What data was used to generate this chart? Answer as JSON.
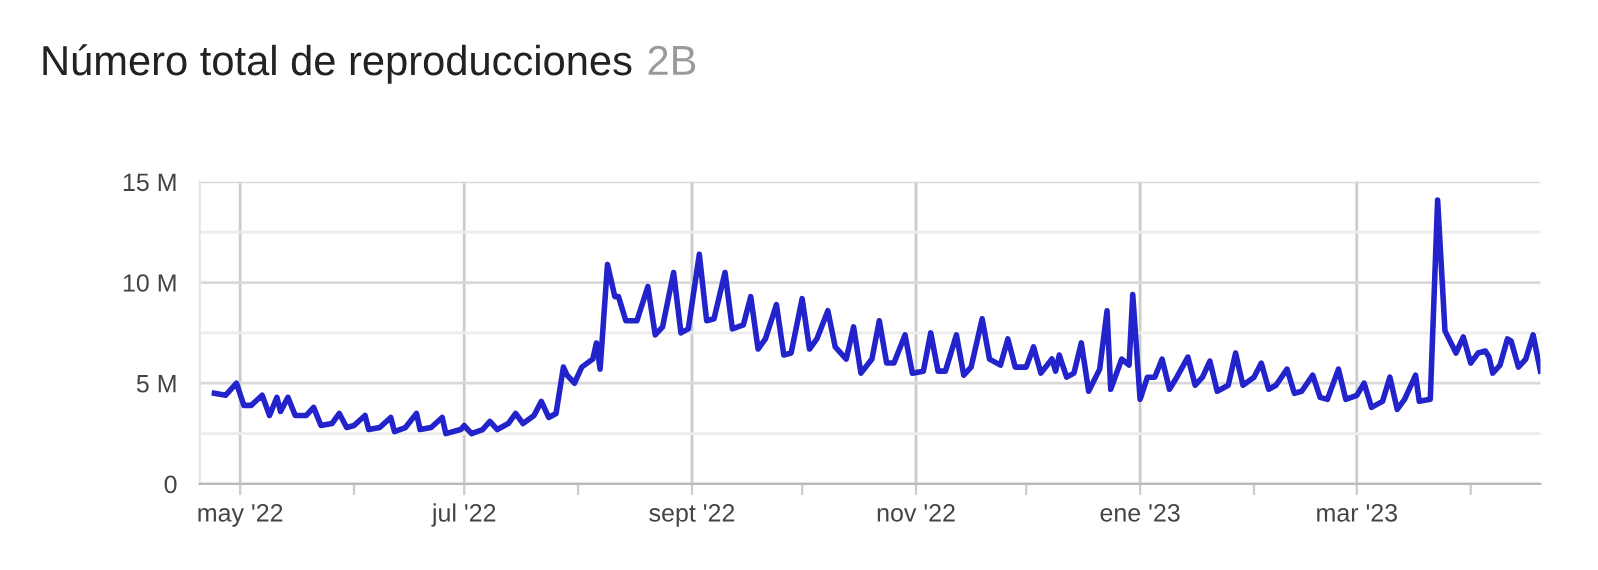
{
  "chart_data": {
    "type": "line",
    "title": "Número total de reproducciones",
    "subtitle": "2B",
    "x": [
      "2022-04-24",
      "2022-04-27",
      "2022-04-30",
      "2022-05-02",
      "2022-05-04",
      "2022-05-07",
      "2022-05-09",
      "2022-05-11",
      "2022-05-12",
      "2022-05-14",
      "2022-05-16",
      "2022-05-19",
      "2022-05-21",
      "2022-05-23",
      "2022-05-26",
      "2022-05-28",
      "2022-05-30",
      "2022-06-01",
      "2022-06-04",
      "2022-06-05",
      "2022-06-08",
      "2022-06-11",
      "2022-06-12",
      "2022-06-15",
      "2022-06-18",
      "2022-06-19",
      "2022-06-22",
      "2022-06-25",
      "2022-06-26",
      "2022-06-30",
      "2022-07-01",
      "2022-07-03",
      "2022-07-06",
      "2022-07-08",
      "2022-07-10",
      "2022-07-13",
      "2022-07-15",
      "2022-07-17",
      "2022-07-20",
      "2022-07-22",
      "2022-07-24",
      "2022-07-26",
      "2022-07-28",
      "2022-07-29",
      "2022-07-31",
      "2022-08-02",
      "2022-08-05",
      "2022-08-06",
      "2022-08-07",
      "2022-08-09",
      "2022-08-11",
      "2022-08-12",
      "2022-08-14",
      "2022-08-17",
      "2022-08-20",
      "2022-08-22",
      "2022-08-24",
      "2022-08-27",
      "2022-08-29",
      "2022-08-31",
      "2022-09-03",
      "2022-09-05",
      "2022-09-07",
      "2022-09-10",
      "2022-09-12",
      "2022-09-15",
      "2022-09-17",
      "2022-09-19",
      "2022-09-21",
      "2022-09-24",
      "2022-09-26",
      "2022-09-28",
      "2022-10-01",
      "2022-10-03",
      "2022-10-05",
      "2022-10-08",
      "2022-10-10",
      "2022-10-13",
      "2022-10-15",
      "2022-10-17",
      "2022-10-20",
      "2022-10-22",
      "2022-10-24",
      "2022-10-26",
      "2022-10-29",
      "2022-10-31",
      "2022-11-03",
      "2022-11-05",
      "2022-11-07",
      "2022-11-09",
      "2022-11-12",
      "2022-11-14",
      "2022-11-16",
      "2022-11-19",
      "2022-11-21",
      "2022-11-24",
      "2022-11-26",
      "2022-11-28",
      "2022-12-01",
      "2022-12-03",
      "2022-12-05",
      "2022-12-08",
      "2022-12-09",
      "2022-12-10",
      "2022-12-12",
      "2022-12-14",
      "2022-12-16",
      "2022-12-18",
      "2022-12-21",
      "2022-12-23",
      "2022-12-24",
      "2022-12-27",
      "2022-12-29",
      "2022-12-30",
      "2023-01-01",
      "2023-01-03",
      "2023-01-05",
      "2023-01-07",
      "2023-01-09",
      "2023-01-11",
      "2023-01-14",
      "2023-01-16",
      "2023-01-18",
      "2023-01-20",
      "2023-01-22",
      "2023-01-25",
      "2023-01-27",
      "2023-01-29",
      "2023-02-01",
      "2023-02-03",
      "2023-02-05",
      "2023-02-07",
      "2023-02-10",
      "2023-02-12",
      "2023-02-14",
      "2023-02-17",
      "2023-02-19",
      "2023-02-21",
      "2023-02-24",
      "2023-02-26",
      "2023-03-01",
      "2023-03-03",
      "2023-03-05",
      "2023-03-08",
      "2023-03-10",
      "2023-03-12",
      "2023-03-14",
      "2023-03-17",
      "2023-03-18",
      "2023-03-21",
      "2023-03-23",
      "2023-03-25",
      "2023-03-28",
      "2023-03-30",
      "2023-04-01",
      "2023-04-03",
      "2023-04-05",
      "2023-04-06",
      "2023-04-07",
      "2023-04-09",
      "2023-04-11",
      "2023-04-12",
      "2023-04-14",
      "2023-04-16",
      "2023-04-18",
      "2023-04-20"
    ],
    "series": [
      {
        "color": "#2323cc",
        "values": [
          4.5,
          4.4,
          5.0,
          3.9,
          3.9,
          4.4,
          3.4,
          4.3,
          3.6,
          4.3,
          3.4,
          3.4,
          3.8,
          2.9,
          3.0,
          3.5,
          2.8,
          2.9,
          3.4,
          2.7,
          2.8,
          3.3,
          2.6,
          2.8,
          3.5,
          2.7,
          2.8,
          3.3,
          2.5,
          2.7,
          2.9,
          2.5,
          2.7,
          3.1,
          2.7,
          3.0,
          3.5,
          3.0,
          3.4,
          4.1,
          3.3,
          3.5,
          5.8,
          5.4,
          5.0,
          5.8,
          6.2,
          7.0,
          5.7,
          10.9,
          9.3,
          9.3,
          8.1,
          8.1,
          9.8,
          7.4,
          7.8,
          10.5,
          7.5,
          7.7,
          11.4,
          8.1,
          8.2,
          10.5,
          7.7,
          7.9,
          9.3,
          6.7,
          7.2,
          8.9,
          6.4,
          6.5,
          9.2,
          6.7,
          7.2,
          8.6,
          6.8,
          6.2,
          7.8,
          5.5,
          6.2,
          8.1,
          6.0,
          6.0,
          7.4,
          5.5,
          5.6,
          7.5,
          5.6,
          5.6,
          7.4,
          5.4,
          5.8,
          8.2,
          6.2,
          5.9,
          7.2,
          5.8,
          5.8,
          6.8,
          5.5,
          6.2,
          5.6,
          6.4,
          5.3,
          5.5,
          7.0,
          4.6,
          5.7,
          8.6,
          4.7,
          6.2,
          5.9,
          9.4,
          4.2,
          5.3,
          5.3,
          6.2,
          4.7,
          5.3,
          6.3,
          4.9,
          5.3,
          6.1,
          4.6,
          4.9,
          6.5,
          4.9,
          5.3,
          6.0,
          4.7,
          4.9,
          5.7,
          4.5,
          4.6,
          5.4,
          4.3,
          4.2,
          5.7,
          4.2,
          4.4,
          5.0,
          3.8,
          4.1,
          5.3,
          3.7,
          4.2,
          5.4,
          4.1,
          4.2,
          14.1,
          7.6,
          6.5,
          7.3,
          6.0,
          6.5,
          6.6,
          6.3,
          5.5,
          5.9,
          7.2,
          7.1,
          5.8,
          6.2,
          7.4,
          5.6
        ]
      }
    ],
    "xlim": [
      "2022-04-20",
      "2023-04-20"
    ],
    "xticks": [
      {
        "value": "2022-05-01",
        "label": "may '22"
      },
      {
        "value": "2022-06-01",
        "label": null
      },
      {
        "value": "2022-07-01",
        "label": "jul '22"
      },
      {
        "value": "2022-08-01",
        "label": null
      },
      {
        "value": "2022-09-01",
        "label": "sept '22"
      },
      {
        "value": "2022-10-01",
        "label": null
      },
      {
        "value": "2022-11-01",
        "label": "nov '22"
      },
      {
        "value": "2022-12-01",
        "label": null
      },
      {
        "value": "2023-01-01",
        "label": "ene '23"
      },
      {
        "value": "2023-02-01",
        "label": null
      },
      {
        "value": "2023-03-01",
        "label": "mar '23"
      },
      {
        "value": "2023-04-01",
        "label": null
      }
    ],
    "ylim": [
      0,
      15
    ],
    "yticks": [
      {
        "value": 0,
        "label": "0"
      },
      {
        "value": 2.5,
        "label": null
      },
      {
        "value": 5,
        "label": "5 M"
      },
      {
        "value": 7.5,
        "label": null
      },
      {
        "value": 10,
        "label": "10 M"
      },
      {
        "value": 12.5,
        "label": null
      },
      {
        "value": 15,
        "label": "15 M"
      }
    ],
    "grid": true,
    "marker": "none",
    "line_style": "solid"
  }
}
